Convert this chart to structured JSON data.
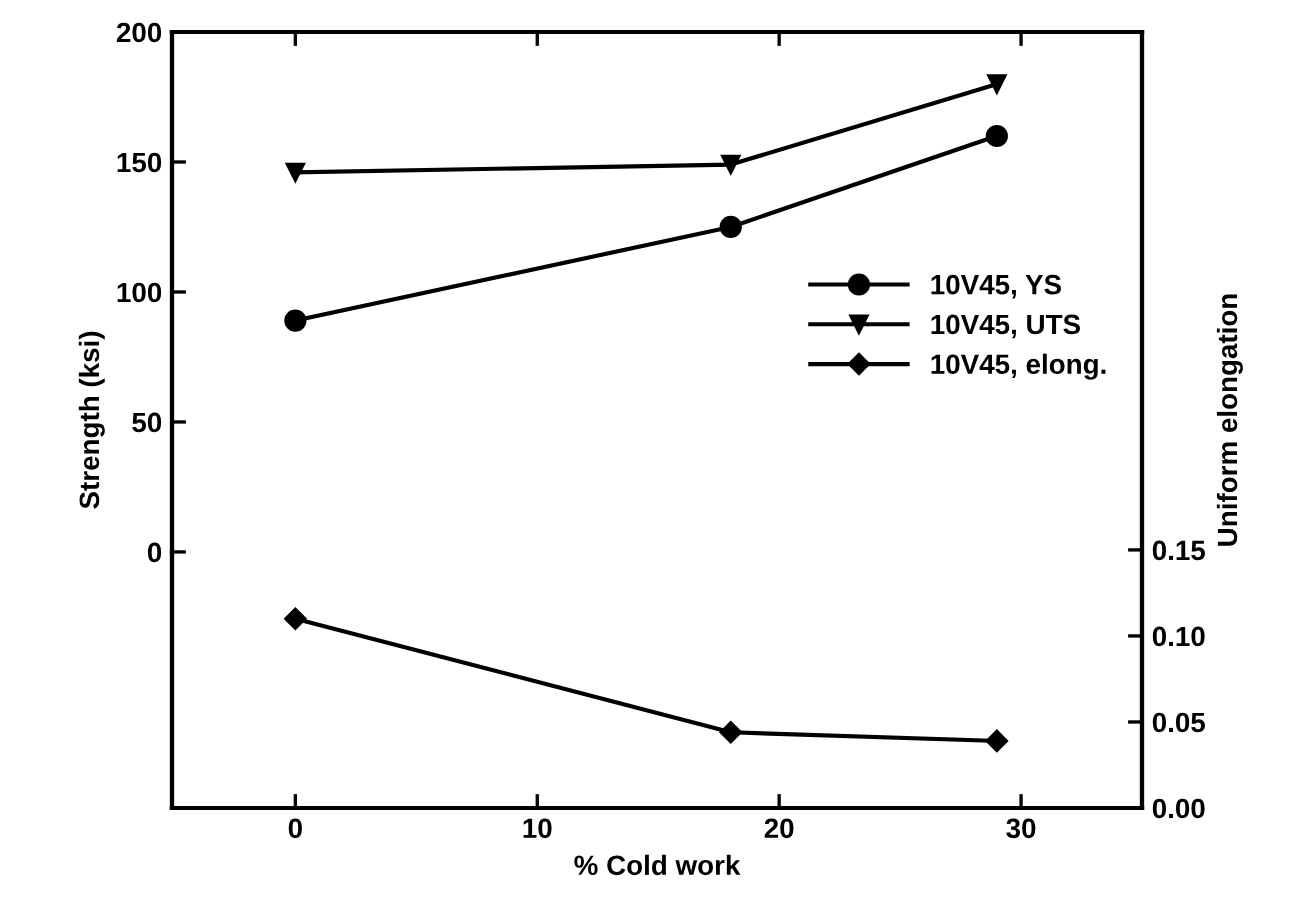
{
  "chart_data": {
    "type": "line",
    "xlabel": "% Cold work",
    "ylabel": "Strength (ksi)",
    "y2label": "Uniform elongation",
    "x": [
      0,
      18,
      29
    ],
    "series": [
      {
        "name": "10V45, YS",
        "color": "#000000",
        "marker": "circle",
        "values": [
          89,
          125,
          160
        ]
      },
      {
        "name": "10V45, UTS",
        "color": "#000000",
        "marker": "triangle",
        "values": [
          146,
          149,
          180
        ]
      },
      {
        "name": "10V45, elong.",
        "color": "#000000",
        "marker": "diamond",
        "axis": "y2",
        "values": [
          0.11,
          0.044,
          0.039
        ]
      }
    ],
    "xlim": [
      -5.1,
      35
    ],
    "xticks": [
      0,
      10,
      20,
      30
    ],
    "ylim": [
      -98.5,
      200
    ],
    "yticks": [
      0,
      50,
      100,
      150,
      200
    ],
    "y2lim": [
      0,
      0.451
    ],
    "y2ticks": [
      {
        "value": 0,
        "label": "0.00"
      },
      {
        "value": 0.05,
        "label": "0.05"
      },
      {
        "value": 0.1,
        "label": "0.10"
      },
      {
        "value": 0.15,
        "label": "0.15"
      }
    ],
    "legend": "right",
    "grid": false,
    "line_style": "solid"
  }
}
